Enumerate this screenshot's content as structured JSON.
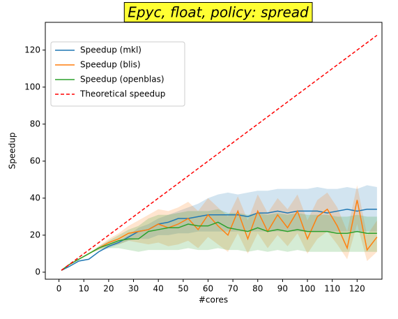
{
  "chart_data": {
    "type": "line",
    "title": "Epyc, float, policy: spread",
    "x_label": "#cores",
    "y_label": "Speedup",
    "x": [
      1,
      4,
      8,
      12,
      16,
      20,
      24,
      28,
      32,
      36,
      40,
      44,
      48,
      52,
      56,
      60,
      64,
      68,
      72,
      76,
      80,
      84,
      88,
      92,
      96,
      100,
      104,
      108,
      112,
      116,
      120,
      124,
      128
    ],
    "series": [
      {
        "name": "Speedup (mkl)",
        "color": "#1f77b4",
        "style": "solid",
        "values": [
          1,
          3,
          6,
          7,
          11,
          14,
          16,
          19,
          22,
          23,
          26,
          27,
          29,
          29,
          30,
          31,
          31,
          31,
          31,
          30,
          32,
          32,
          33,
          32,
          33,
          33,
          33,
          32,
          33,
          34,
          33,
          34,
          34
        ],
        "lower": [
          1,
          3,
          6,
          7,
          11,
          13,
          15,
          17,
          18,
          18,
          20,
          20,
          21,
          21,
          22,
          22,
          22,
          22,
          22,
          22,
          22,
          22,
          22,
          22,
          22,
          22,
          22,
          22,
          22,
          22,
          22,
          22,
          22
        ],
        "upper": [
          1,
          3,
          6,
          7,
          11,
          15,
          17,
          20,
          24,
          26,
          29,
          31,
          33,
          35,
          37,
          40,
          42,
          43,
          42,
          43,
          44,
          44,
          45,
          45,
          45,
          45,
          46,
          45,
          45,
          46,
          45,
          47,
          46
        ]
      },
      {
        "name": "Speedup (blis)",
        "color": "#ff7f0e",
        "style": "solid",
        "values": [
          1,
          4,
          7,
          10,
          13,
          16,
          18,
          21,
          22,
          23,
          26,
          24,
          26,
          29,
          23,
          31,
          25,
          20,
          33,
          18,
          33,
          22,
          31,
          24,
          33,
          18,
          30,
          34,
          25,
          13,
          39,
          12,
          19
        ],
        "lower": [
          1,
          4,
          7,
          10,
          12,
          14,
          15,
          17,
          16,
          15,
          16,
          14,
          15,
          17,
          13,
          19,
          15,
          11,
          21,
          10,
          21,
          13,
          20,
          14,
          21,
          10,
          18,
          22,
          15,
          7,
          26,
          6,
          11
        ],
        "upper": [
          1,
          4,
          7,
          10,
          14,
          18,
          21,
          25,
          28,
          31,
          34,
          33,
          35,
          38,
          33,
          40,
          35,
          30,
          41,
          28,
          42,
          32,
          40,
          34,
          42,
          28,
          39,
          43,
          35,
          22,
          47,
          20,
          28
        ]
      },
      {
        "name": "Speedup (openblas)",
        "color": "#2ca02c",
        "style": "solid",
        "values": [
          1,
          4,
          7,
          10,
          13,
          15,
          17,
          18,
          18,
          22,
          23,
          24,
          24,
          26,
          25,
          25,
          27,
          24,
          23,
          22,
          24,
          22,
          23,
          22,
          23,
          22,
          22,
          22,
          21,
          21,
          22,
          21,
          21
        ],
        "lower": [
          1,
          4,
          7,
          10,
          12,
          13,
          13,
          12,
          11,
          12,
          12,
          12,
          12,
          13,
          12,
          12,
          13,
          12,
          12,
          11,
          12,
          11,
          12,
          11,
          12,
          11,
          11,
          11,
          11,
          11,
          11,
          11,
          11
        ],
        "upper": [
          1,
          4,
          7,
          10,
          14,
          17,
          20,
          23,
          25,
          29,
          31,
          31,
          32,
          33,
          33,
          33,
          34,
          32,
          32,
          31,
          32,
          31,
          32,
          31,
          32,
          31,
          31,
          31,
          30,
          30,
          31,
          30,
          30
        ]
      },
      {
        "name": "Theoretical speedup",
        "color": "#ff0000",
        "style": "dashed",
        "values": [
          1,
          4,
          8,
          12,
          16,
          20,
          24,
          28,
          32,
          36,
          40,
          44,
          48,
          52,
          56,
          60,
          64,
          68,
          72,
          76,
          80,
          84,
          88,
          92,
          96,
          100,
          104,
          108,
          112,
          116,
          120,
          124,
          128
        ]
      }
    ],
    "xlim": [
      -5.5,
      130
    ],
    "ylim": [
      -3.8,
      135
    ],
    "xticks": [
      0,
      10,
      20,
      30,
      40,
      50,
      60,
      70,
      80,
      90,
      100,
      110,
      120
    ],
    "yticks": [
      0,
      20,
      40,
      60,
      80,
      100,
      120
    ],
    "legend": "upper left",
    "title_box": "#ffff33"
  }
}
